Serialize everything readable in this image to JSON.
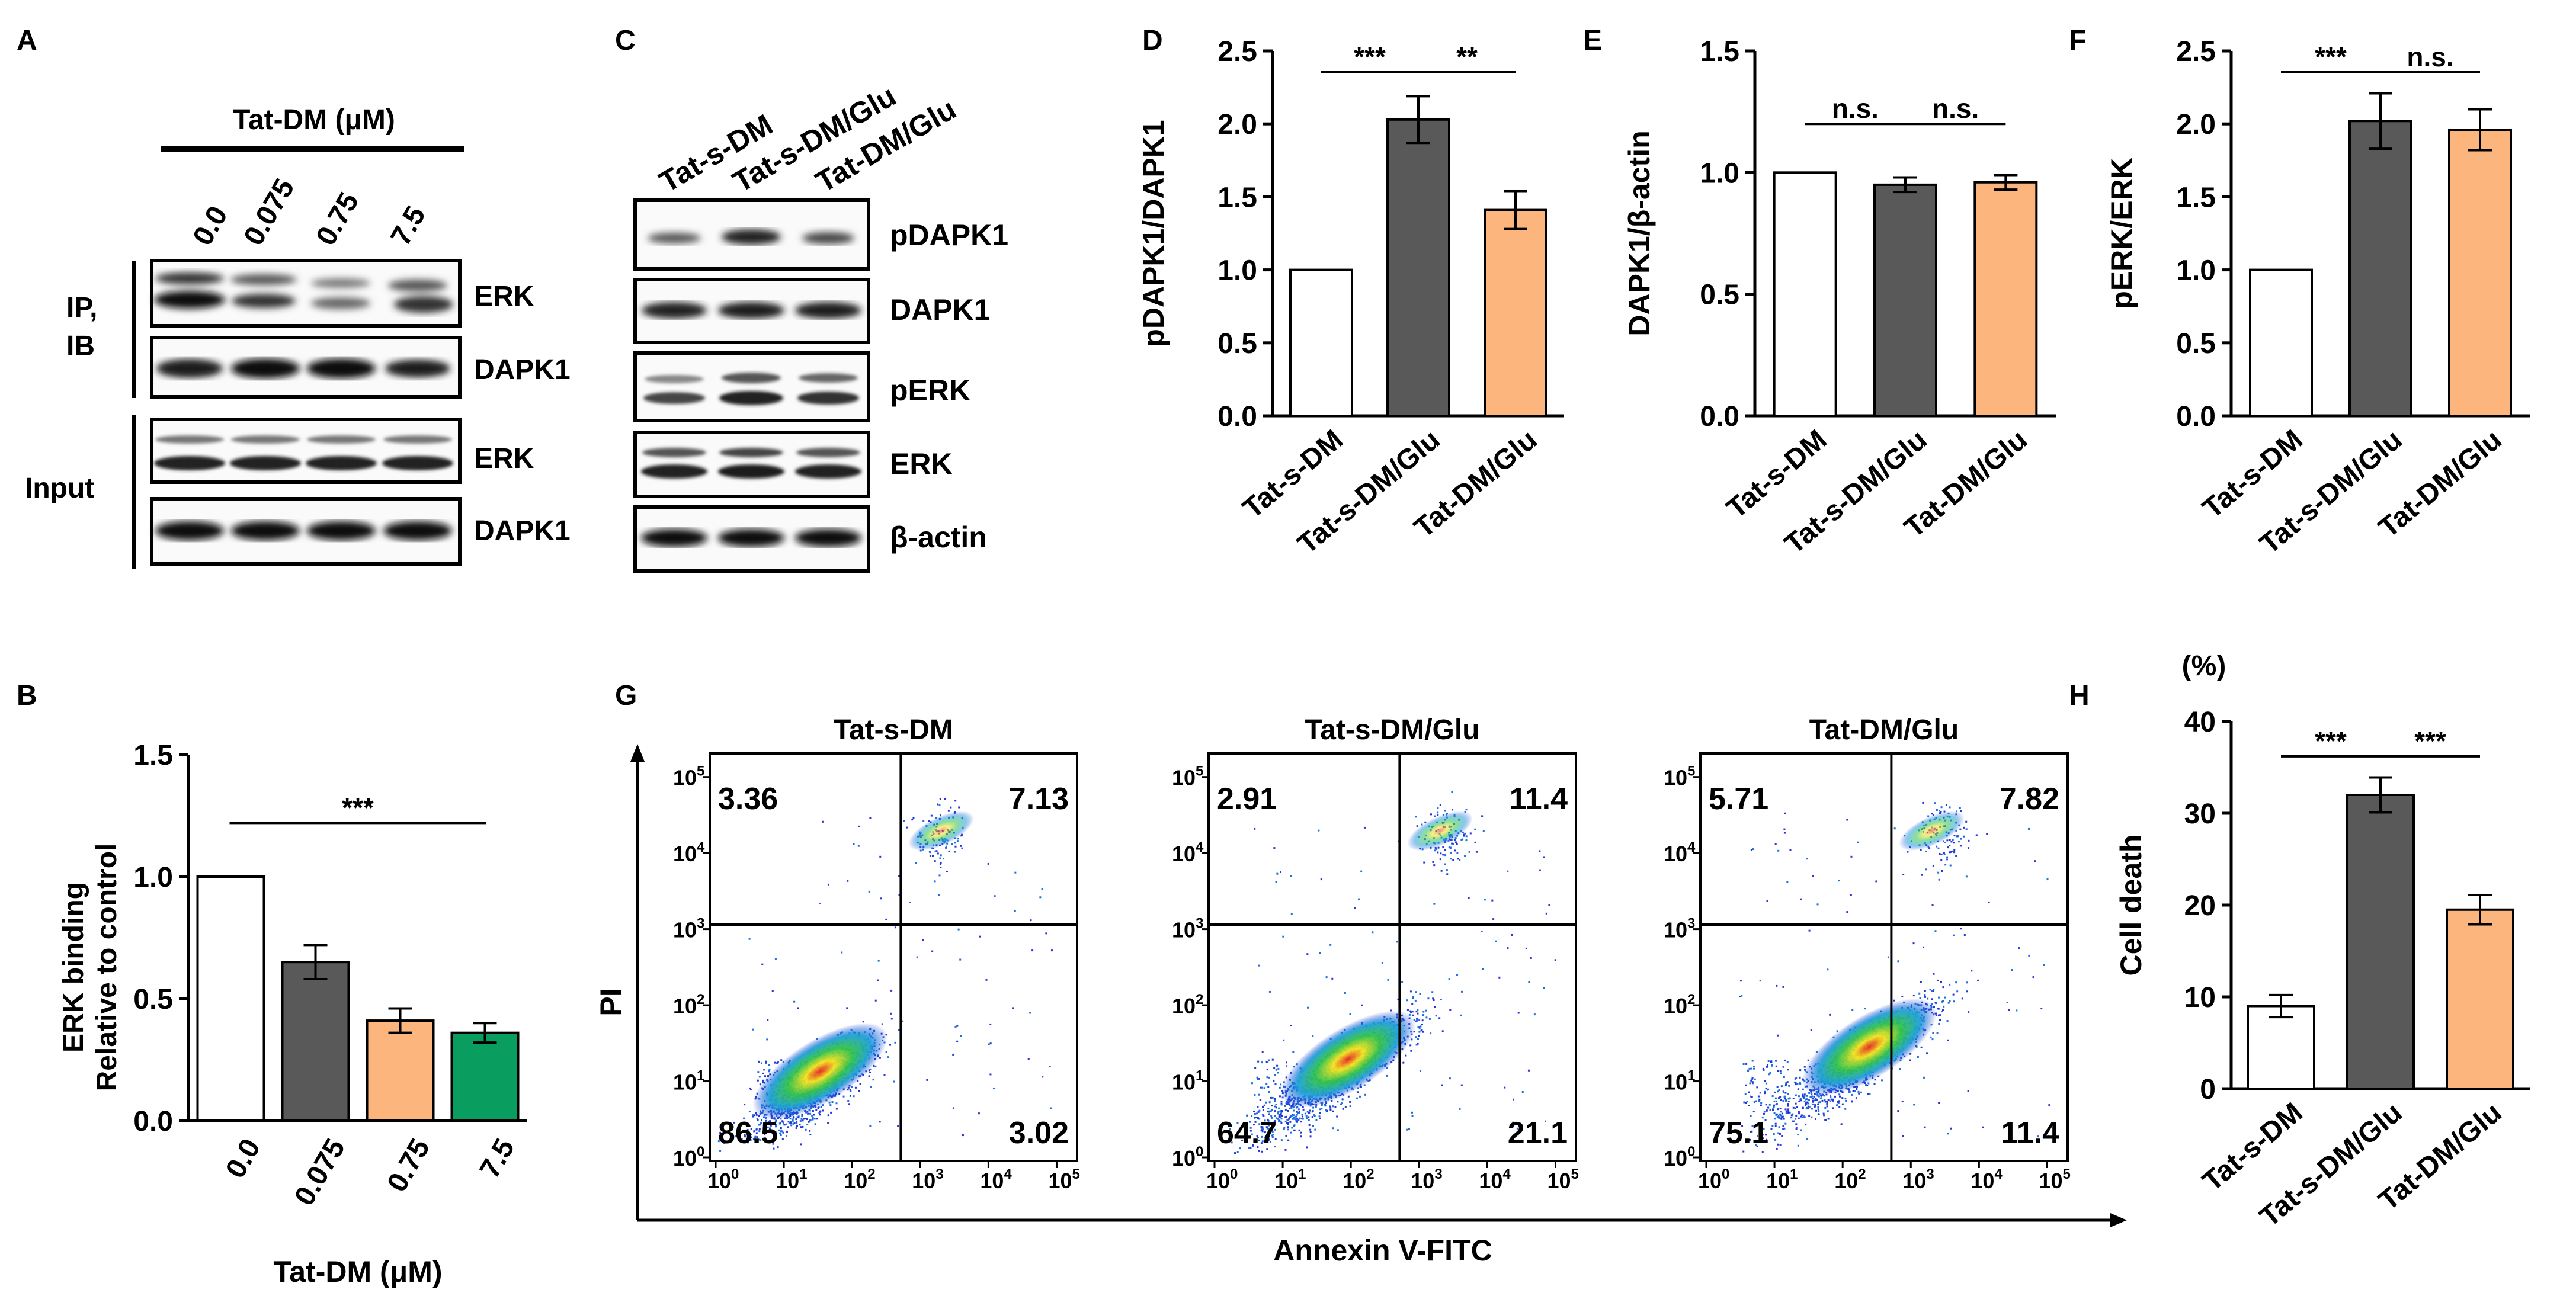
{
  "colors": {
    "white": "#ffffff",
    "dark_gray": "#595959",
    "orange": "#fbb57d",
    "green": "#099d5f",
    "black": "#000000"
  },
  "panel_A": {
    "letter": "A",
    "title": "Tat-DM (μM)",
    "lanes": [
      "0.0",
      "0.075",
      "0.75",
      "7.5"
    ],
    "group_ip": "IP,\nIB",
    "group_input": "Input",
    "blots": [
      "ERK",
      "DAPK1",
      "ERK",
      "DAPK1"
    ]
  },
  "panel_C": {
    "letter": "C",
    "lanes": [
      "Tat-s-DM",
      "Tat-s-DM/Glu",
      "Tat-DM/Glu"
    ],
    "blots": [
      "pDAPK1",
      "DAPK1",
      "pERK",
      "ERK",
      "β-actin"
    ]
  },
  "panel_G": {
    "letter": "G",
    "x_label": "Annexin V-FITC",
    "y_label": "PI",
    "ticks": [
      "10",
      "0",
      "1",
      "2",
      "3",
      "4",
      "5"
    ],
    "plots": [
      {
        "title": "Tat-s-DM",
        "q": [
          "3.36",
          "7.13",
          "86.5",
          "3.02"
        ]
      },
      {
        "title": "Tat-s-DM/Glu",
        "q": [
          "2.91",
          "11.4",
          "64.7",
          "21.1"
        ]
      },
      {
        "title": "Tat-DM/Glu",
        "q": [
          "5.71",
          "7.82",
          "75.1",
          "11.4"
        ]
      }
    ]
  },
  "chart_data": [
    {
      "panel": "B",
      "type": "bar",
      "categories": [
        "0.0",
        "0.075",
        "0.75",
        "7.5"
      ],
      "values": [
        1.0,
        0.65,
        0.41,
        0.36
      ],
      "errors": [
        0,
        0.07,
        0.05,
        0.04
      ],
      "fills": [
        "#ffffff",
        "#595959",
        "#fbb57d",
        "#099d5f"
      ],
      "title": "",
      "xlabel": "Tat-DM (μM)",
      "ylabel": [
        "ERK binding",
        "Relative to control"
      ],
      "ylim": [
        0,
        1.5
      ],
      "yticks": [
        "0.0",
        "0.5",
        "1.0",
        "1.5"
      ],
      "significance": [
        {
          "from": 0,
          "to": 3,
          "label": "***"
        }
      ]
    },
    {
      "panel": "D",
      "type": "bar",
      "categories": [
        "Tat-s-DM",
        "Tat-s-DM/Glu",
        "Tat-DM/Glu"
      ],
      "values": [
        1.0,
        2.03,
        1.41
      ],
      "errors": [
        0,
        0.16,
        0.13
      ],
      "fills": [
        "#ffffff",
        "#595959",
        "#fbb57d"
      ],
      "ylabel": [
        "pDAPK1/DAPK1"
      ],
      "ylim": [
        0,
        2.5
      ],
      "yticks": [
        "0.0",
        "0.5",
        "1.0",
        "1.5",
        "2.0",
        "2.5"
      ],
      "significance": [
        {
          "from": 0,
          "to": 1,
          "label": "***"
        },
        {
          "from": 1,
          "to": 2,
          "label": "**"
        }
      ]
    },
    {
      "panel": "E",
      "type": "bar",
      "categories": [
        "Tat-s-DM",
        "Tat-s-DM/Glu",
        "Tat-DM/Glu"
      ],
      "values": [
        1.0,
        0.95,
        0.96
      ],
      "errors": [
        0,
        0.03,
        0.03
      ],
      "fills": [
        "#ffffff",
        "#595959",
        "#fbb57d"
      ],
      "ylabel": [
        "DAPK1/β-actin"
      ],
      "ylim": [
        0,
        1.5
      ],
      "yticks": [
        "0.0",
        "0.5",
        "1.0",
        "1.5"
      ],
      "significance": [
        {
          "from": 0,
          "to": 1,
          "label": "n.s."
        },
        {
          "from": 1,
          "to": 2,
          "label": "n.s."
        }
      ]
    },
    {
      "panel": "F",
      "type": "bar",
      "categories": [
        "Tat-s-DM",
        "Tat-s-DM/Glu",
        "Tat-DM/Glu"
      ],
      "values": [
        1.0,
        2.02,
        1.96
      ],
      "errors": [
        0,
        0.19,
        0.14
      ],
      "fills": [
        "#ffffff",
        "#595959",
        "#fbb57d"
      ],
      "ylabel": [
        "pERK/ERK"
      ],
      "ylim": [
        0,
        2.5
      ],
      "yticks": [
        "0.0",
        "0.5",
        "1.0",
        "1.5",
        "2.0",
        "2.5"
      ],
      "significance": [
        {
          "from": 0,
          "to": 1,
          "label": "***"
        },
        {
          "from": 1,
          "to": 2,
          "label": "n.s."
        }
      ]
    },
    {
      "panel": "H",
      "type": "bar",
      "categories": [
        "Tat-s-DM",
        "Tat-s-DM/Glu",
        "Tat-DM/Glu"
      ],
      "values": [
        9.0,
        32.0,
        19.5
      ],
      "errors": [
        1.2,
        1.9,
        1.6
      ],
      "fills": [
        "#ffffff",
        "#595959",
        "#fbb57d"
      ],
      "ylabel": [
        "Cell death"
      ],
      "unit": "(%)",
      "ylim": [
        0,
        40
      ],
      "yticks": [
        "0",
        "10",
        "20",
        "30",
        "40"
      ],
      "significance": [
        {
          "from": 0,
          "to": 1,
          "label": "***"
        },
        {
          "from": 1,
          "to": 2,
          "label": "***"
        }
      ]
    }
  ]
}
